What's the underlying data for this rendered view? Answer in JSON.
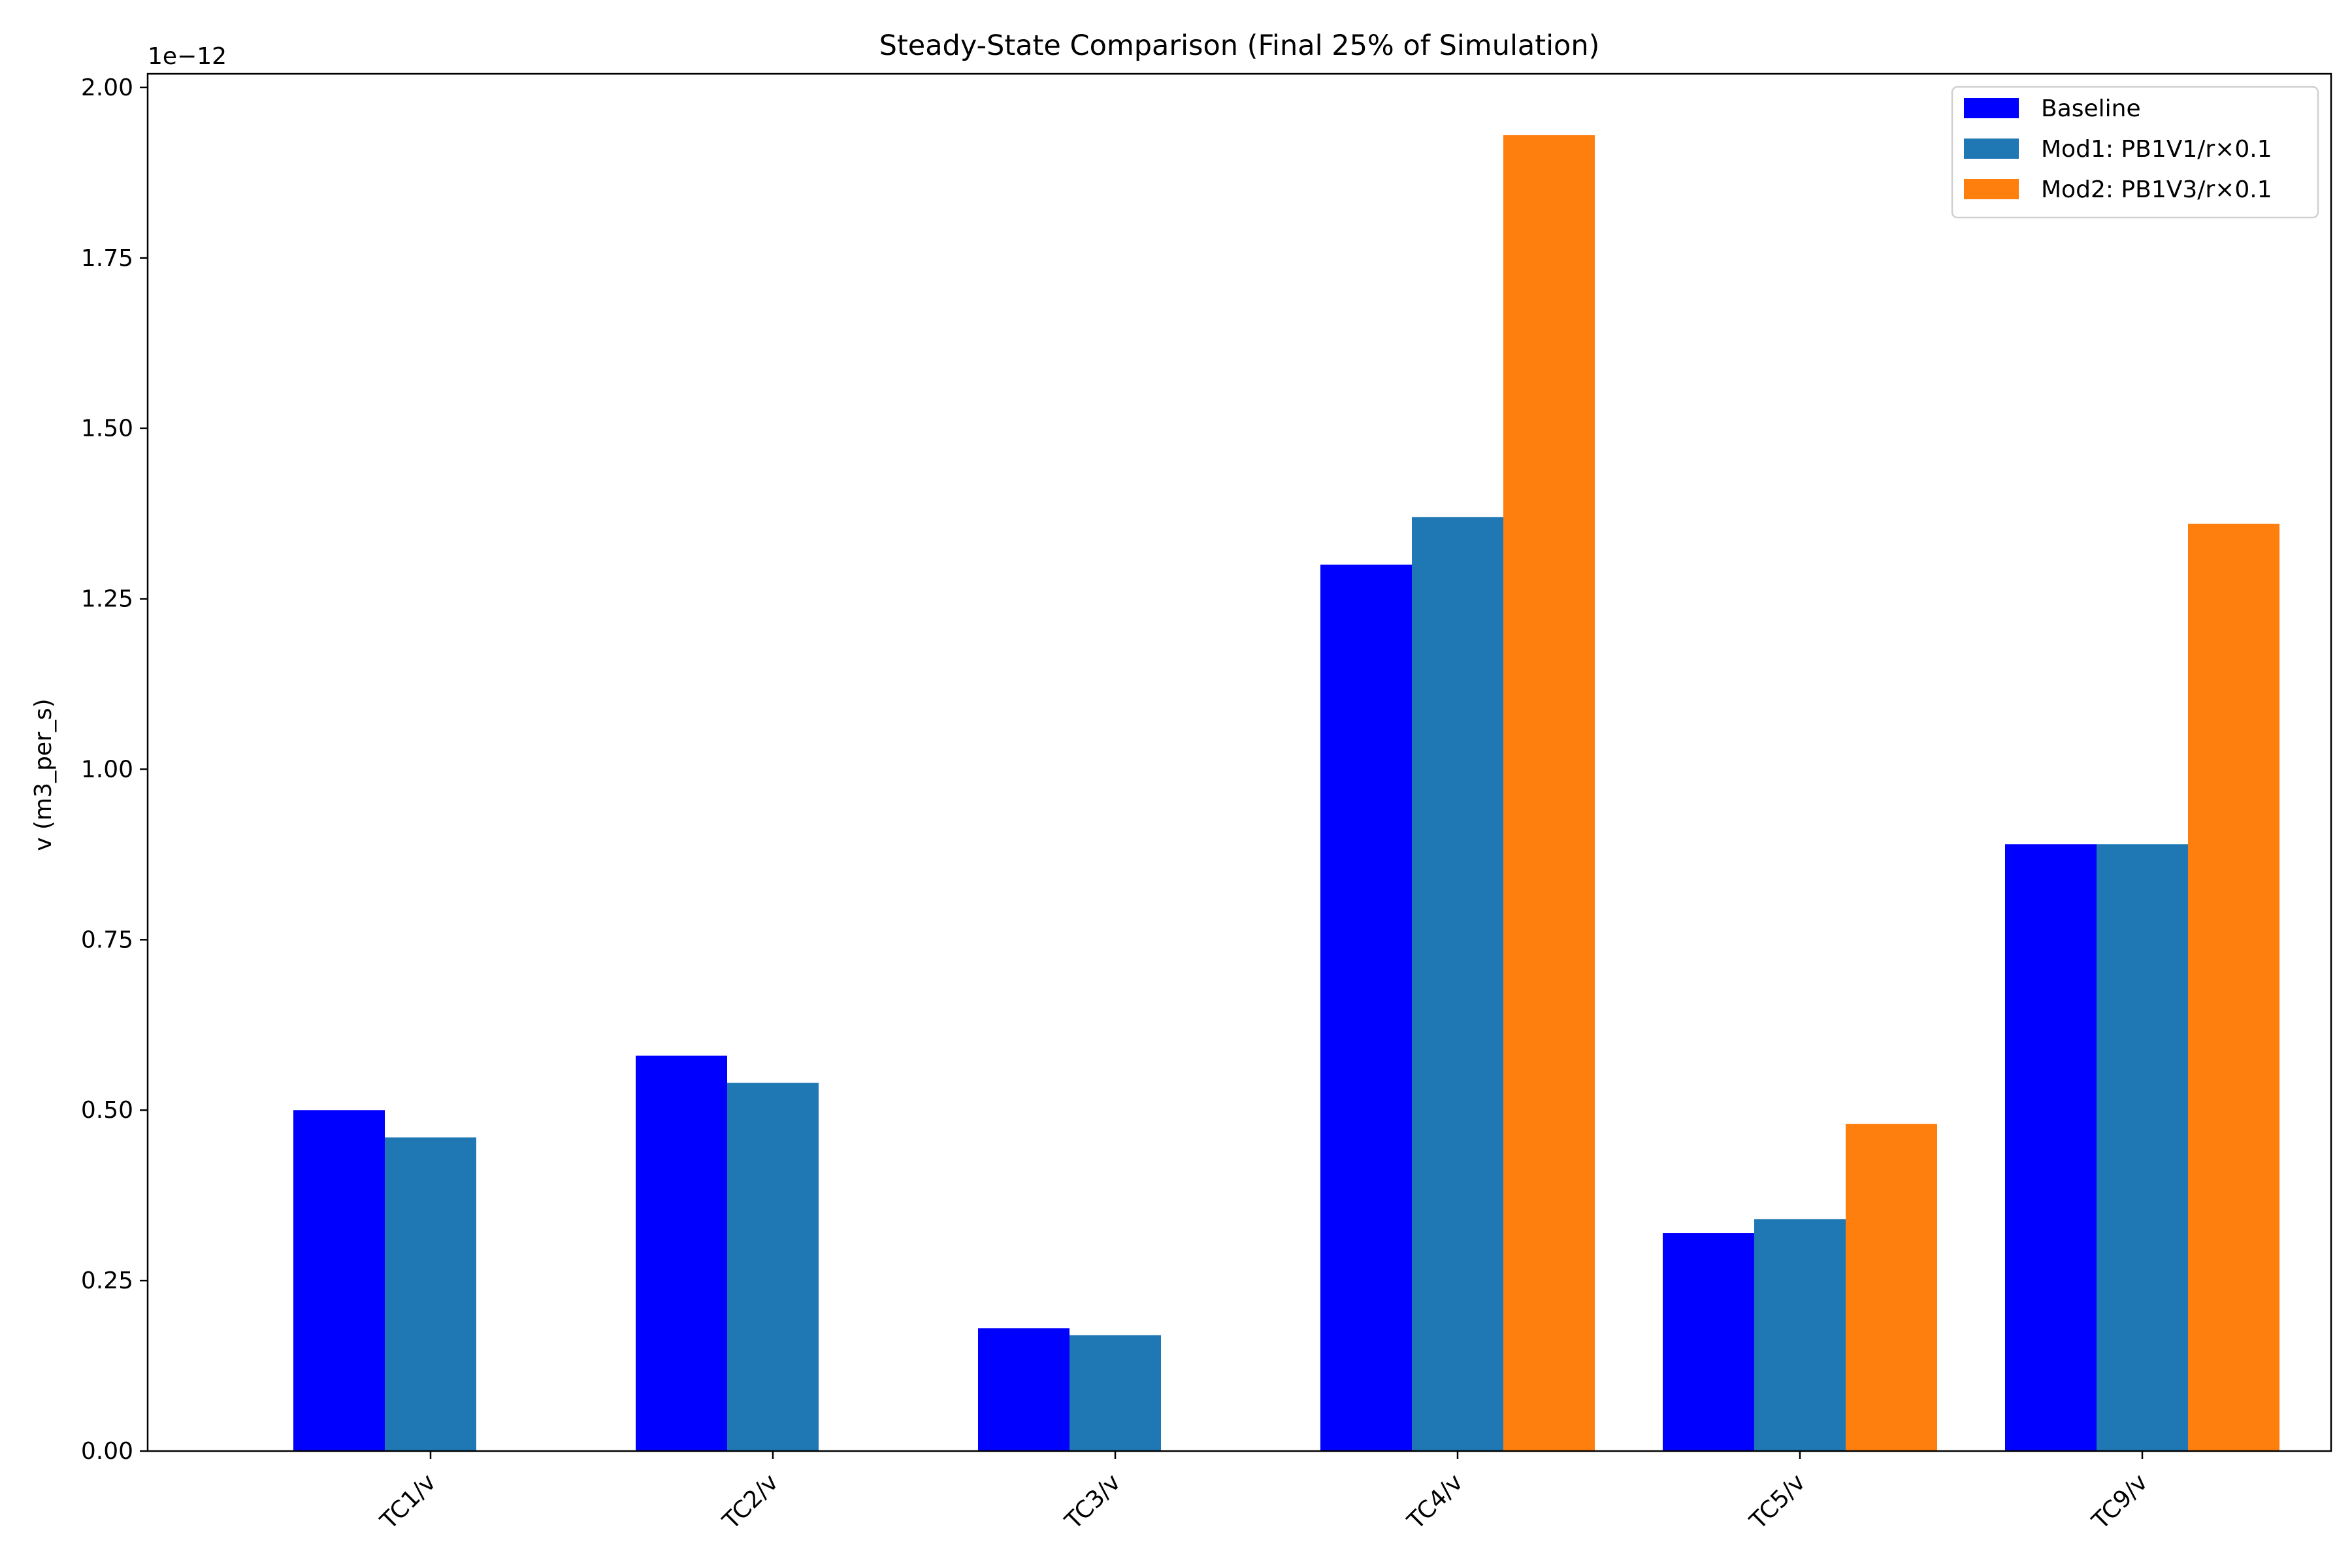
{
  "chart_data": {
    "type": "bar",
    "title": "Steady-State Comparison (Final 25% of Simulation)",
    "xlabel": "",
    "ylabel": "v (m3_per_s)",
    "offset_label": "1e−12",
    "categories": [
      "TC1/v",
      "TC2/v",
      "TC3/v",
      "TC4/v",
      "TC5/v",
      "TC9/v"
    ],
    "ylim": [
      0,
      2.02
    ],
    "yticks": [
      "0.00",
      "0.25",
      "0.50",
      "0.75",
      "1.00",
      "1.25",
      "1.50",
      "1.75",
      "2.00"
    ],
    "ytick_values": [
      0,
      0.25,
      0.5,
      0.75,
      1.0,
      1.25,
      1.5,
      1.75,
      2.0
    ],
    "grid": false,
    "legend_position": "top-right",
    "series": [
      {
        "name": "Baseline",
        "color": "#0000ff",
        "values": [
          0.5,
          0.58,
          0.18,
          1.3,
          0.32,
          0.89
        ]
      },
      {
        "name": "Mod1: PB1V1/r×0.1",
        "color": "#1f77b4",
        "values": [
          0.46,
          0.54,
          0.17,
          1.37,
          0.34,
          0.89
        ]
      },
      {
        "name": "Mod2: PB1V3/r×0.1",
        "color": "#ff7f0e",
        "values": [
          null,
          null,
          null,
          1.93,
          0.48,
          1.36
        ]
      }
    ]
  }
}
